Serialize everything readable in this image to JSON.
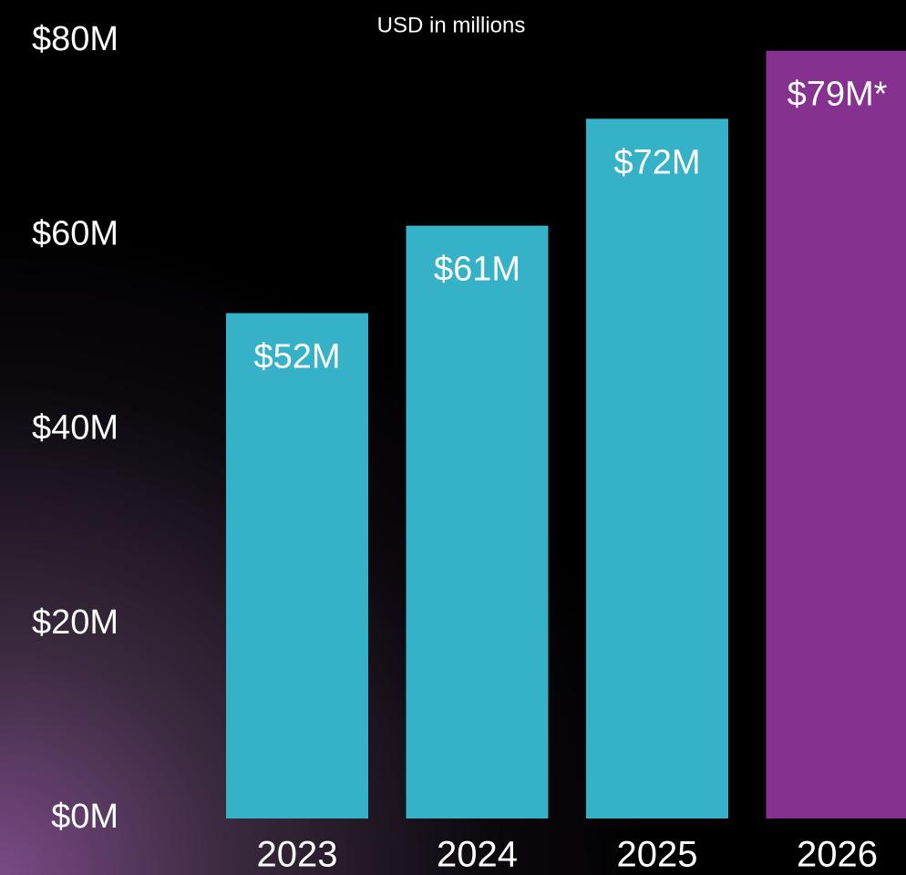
{
  "chart_data": {
    "type": "bar",
    "subtitle": "USD in millions",
    "categories": [
      "2023",
      "2024",
      "2025",
      "2026"
    ],
    "values": [
      52,
      61,
      72,
      79
    ],
    "value_labels": [
      "$52M",
      "$61M",
      "$72M",
      "$79M*"
    ],
    "colors": [
      "#35b2c8",
      "#35b2c8",
      "#35b2c8",
      "#86308f"
    ],
    "ylim": [
      0,
      80
    ],
    "yticks": [
      {
        "value": 0,
        "label": "$0M"
      },
      {
        "value": 20,
        "label": "$20M"
      },
      {
        "value": 40,
        "label": "$40M"
      },
      {
        "value": 60,
        "label": "$60M"
      },
      {
        "value": 80,
        "label": "$80M"
      }
    ],
    "grid": false
  }
}
